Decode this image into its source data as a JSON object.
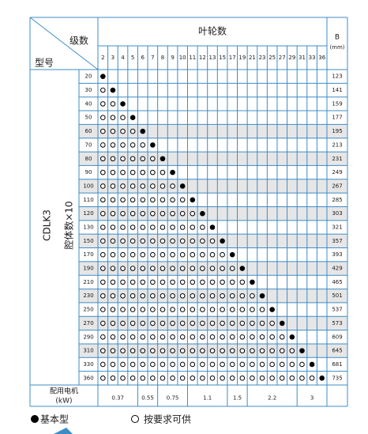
{
  "header": {
    "model": "型号",
    "stages": "级数",
    "impellers": "叶轮数",
    "b": "B",
    "b_unit": "(mm)"
  },
  "series_label": "CDLK3",
  "rows_label": "腔体数×10",
  "columns": [
    2,
    3,
    4,
    5,
    6,
    7,
    8,
    9,
    10,
    11,
    12,
    13,
    15,
    17,
    19,
    21,
    23,
    25,
    27,
    29,
    31,
    33,
    36
  ],
  "rows": [
    {
      "label": 20,
      "b": 123
    },
    {
      "label": 30,
      "b": 141
    },
    {
      "label": 40,
      "b": 159
    },
    {
      "label": 50,
      "b": 177
    },
    {
      "label": 60,
      "b": 195
    },
    {
      "label": 70,
      "b": 213
    },
    {
      "label": 80,
      "b": 231
    },
    {
      "label": 90,
      "b": 249
    },
    {
      "label": 100,
      "b": 267
    },
    {
      "label": 110,
      "b": 285
    },
    {
      "label": 120,
      "b": 303
    },
    {
      "label": 130,
      "b": 321
    },
    {
      "label": 150,
      "b": 357
    },
    {
      "label": 170,
      "b": 393
    },
    {
      "label": 190,
      "b": 429
    },
    {
      "label": 210,
      "b": 465
    },
    {
      "label": 230,
      "b": 501
    },
    {
      "label": 250,
      "b": 537
    },
    {
      "label": 270,
      "b": 573
    },
    {
      "label": 290,
      "b": 609
    },
    {
      "label": 310,
      "b": 645
    },
    {
      "label": 330,
      "b": 681
    },
    {
      "label": 360,
      "b": 735
    }
  ],
  "motor": {
    "label": "配用电机",
    "unit": "(kW)",
    "groups": [
      {
        "label": 0.37,
        "span": 4
      },
      {
        "label": 0.55,
        "span": 2
      },
      {
        "label": 0.75,
        "span": 3
      },
      {
        "label": 1.1,
        "span": 4
      },
      {
        "label": 1.5,
        "span": 2
      },
      {
        "label": 2.2,
        "span": 5
      },
      {
        "label": 3,
        "span": 3
      }
    ]
  },
  "legend": {
    "basic": "基本型",
    "optional": "按要求可供"
  }
}
